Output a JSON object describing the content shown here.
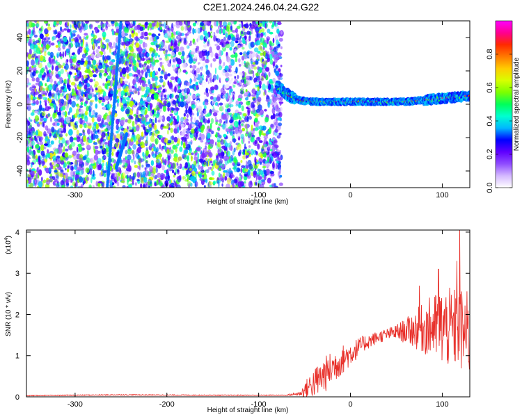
{
  "title": "C2E1.2024.246.04.24.G22",
  "chart_data": [
    {
      "type": "heatmap",
      "xlabel": "Height of straight line (km)",
      "ylabel": "Frequency (Hz)",
      "xlim": [
        -353,
        130
      ],
      "ylim": [
        -50,
        50
      ],
      "x_ticks": [
        "-300",
        "-200",
        "-100",
        "0",
        "100"
      ],
      "x_tick_values": [
        -300,
        -200,
        -100,
        0,
        100
      ],
      "y_ticks": [
        "-40",
        "-20",
        "0",
        "20",
        "40"
      ],
      "y_tick_values": [
        -40,
        -20,
        0,
        20,
        40
      ],
      "colorbar": {
        "label": "Normalized spectral amplitude",
        "range": [
          0,
          1
        ],
        "ticks": [
          "0.0",
          "0.2",
          "0.4",
          "0.6",
          "0.8"
        ],
        "tick_values": [
          0.0,
          0.2,
          0.4,
          0.6,
          0.8
        ],
        "colors": [
          "#ffffff",
          "#d4b8ff",
          "#8f4cff",
          "#6000ff",
          "#0000ff",
          "#00b8ff",
          "#00ffd0",
          "#00ff5a",
          "#7cff00",
          "#d8ff00",
          "#ffcc00",
          "#ff7a00",
          "#ff2a00",
          "#ff0090",
          "#ff00ff"
        ]
      },
      "noise_region": {
        "x_range": [
          -353,
          -75
        ],
        "freq_range": [
          -50,
          50
        ]
      },
      "streaks": [
        {
          "x_start": -265,
          "x_end": -250,
          "freq_start": -50,
          "freq_end": 50
        },
        {
          "x_start": -255,
          "x_end": -244,
          "freq_start": -38,
          "freq_end": -18
        }
      ],
      "signal_track": {
        "x": [
          -80,
          -70,
          -60,
          -50,
          -40,
          -30,
          -20,
          -10,
          0,
          10,
          20,
          30,
          40,
          50,
          60,
          70,
          80,
          90,
          100,
          110,
          120,
          130
        ],
        "freq": [
          11,
          6,
          3,
          2,
          1.5,
          1.5,
          1.5,
          1.5,
          1.5,
          1.5,
          1.5,
          1.5,
          1.5,
          1.5,
          1.5,
          2,
          2.5,
          3,
          3.5,
          4,
          4.5,
          5
        ]
      }
    },
    {
      "type": "line",
      "xlabel": "Height of straight line (km)",
      "ylabel": "SNR (10 * v/v)",
      "y_multiplier_label": "(x10",
      "y_multiplier_exp": "4",
      "y_multiplier_close": ")",
      "xlim": [
        -353,
        130
      ],
      "ylim": [
        0,
        4.05
      ],
      "x_ticks": [
        "-300",
        "-200",
        "-100",
        "0",
        "100"
      ],
      "x_tick_values": [
        -300,
        -200,
        -100,
        0,
        100
      ],
      "y_ticks": [
        "0",
        "1",
        "2",
        "3",
        "4"
      ],
      "y_tick_values": [
        0,
        1,
        2,
        3,
        4
      ],
      "color": "#e8302a",
      "envelope": {
        "x": [
          -353,
          -250,
          -150,
          -100,
          -70,
          -55,
          -45,
          -30,
          -15,
          0,
          15,
          30,
          45,
          60,
          75,
          90,
          100,
          110,
          120,
          130
        ],
        "mean": [
          0.03,
          0.05,
          0.04,
          0.04,
          0.04,
          0.08,
          0.25,
          0.5,
          0.8,
          1.05,
          1.3,
          1.45,
          1.55,
          1.6,
          1.65,
          1.7,
          1.7,
          1.65,
          1.6,
          1.5
        ],
        "spread": [
          0.01,
          0.01,
          0.01,
          0.01,
          0.01,
          0.05,
          0.3,
          0.45,
          0.4,
          0.3,
          0.2,
          0.15,
          0.15,
          0.3,
          0.55,
          0.8,
          0.95,
          1.0,
          1.05,
          1.05
        ]
      },
      "peaks": [
        {
          "x": 119,
          "y": 4.05
        },
        {
          "x": 116,
          "y": 3.3
        },
        {
          "x": 96,
          "y": 3.1
        },
        {
          "x": 75,
          "y": 2.7
        }
      ]
    }
  ]
}
